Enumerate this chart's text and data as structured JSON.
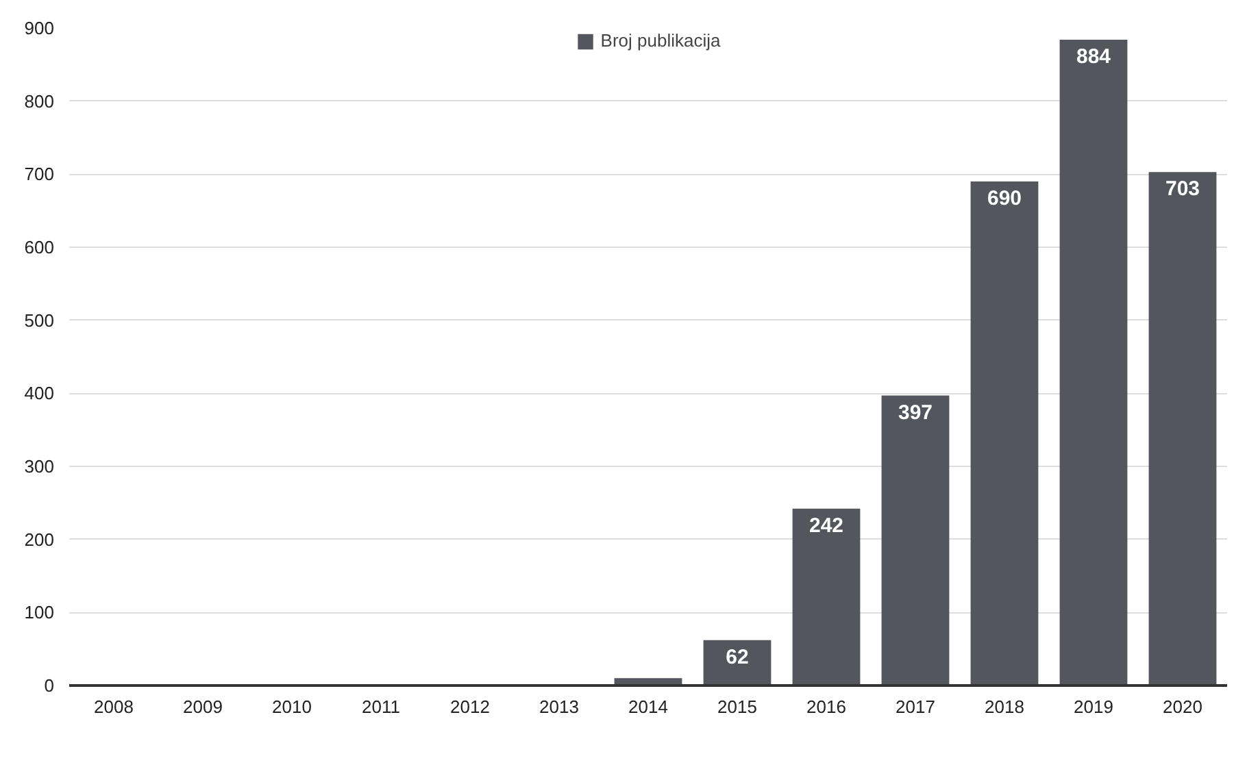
{
  "chart_data": {
    "type": "bar",
    "categories": [
      "2008",
      "2009",
      "2010",
      "2011",
      "2012",
      "2013",
      "2014",
      "2015",
      "2016",
      "2017",
      "2018",
      "2019",
      "2020"
    ],
    "series": [
      {
        "name": "Broj publikacija",
        "color": "#53565c",
        "values": [
          0,
          0,
          0,
          0,
          0,
          0,
          10,
          62,
          242,
          397,
          690,
          884,
          703
        ]
      }
    ],
    "value_labels": [
      null,
      null,
      null,
      null,
      null,
      null,
      null,
      "62",
      "242",
      "397",
      "690",
      "884",
      "703"
    ],
    "ylim": [
      0,
      900
    ],
    "yticks": [
      0,
      100,
      200,
      300,
      400,
      500,
      600,
      700,
      800,
      900
    ],
    "grid": "y",
    "legend": "top"
  }
}
